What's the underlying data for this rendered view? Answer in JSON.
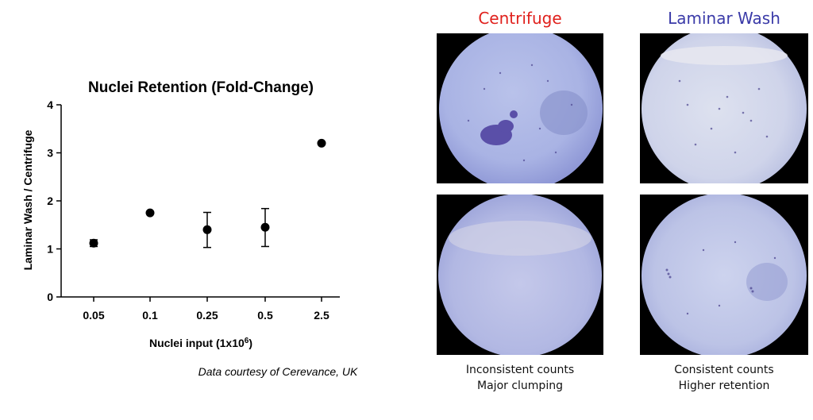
{
  "chart_data": {
    "type": "scatter",
    "title": "Nuclei Retention (Fold-Change)",
    "xlabel": "Nuclei input (1x10",
    "xlabel_sup": "6",
    "xlabel_end": ")",
    "ylabel": "Laminar Wash / Centrifuge",
    "categories": [
      "0.05",
      "0.1",
      "0.25",
      "0.5",
      "2.5"
    ],
    "values": [
      1.12,
      1.75,
      1.4,
      1.45,
      3.2
    ],
    "error_low": [
      1.05,
      null,
      1.03,
      1.05,
      null
    ],
    "error_high": [
      1.19,
      null,
      1.76,
      1.84,
      null
    ],
    "ylim": [
      0,
      4
    ],
    "yticks": [
      "0",
      "1",
      "2",
      "3",
      "4"
    ],
    "grid": false
  },
  "credit": "Data courtesy of Cerevance, UK",
  "panels": {
    "centrifuge": {
      "title": "Centrifuge",
      "color": "#e0201c",
      "caption_line1": "Inconsistent counts",
      "caption_line2": "Major clumping"
    },
    "laminar": {
      "title": "Laminar Wash",
      "color": "#3a3aa8",
      "caption_line1": "Consistent counts",
      "caption_line2": "Higher retention"
    }
  }
}
